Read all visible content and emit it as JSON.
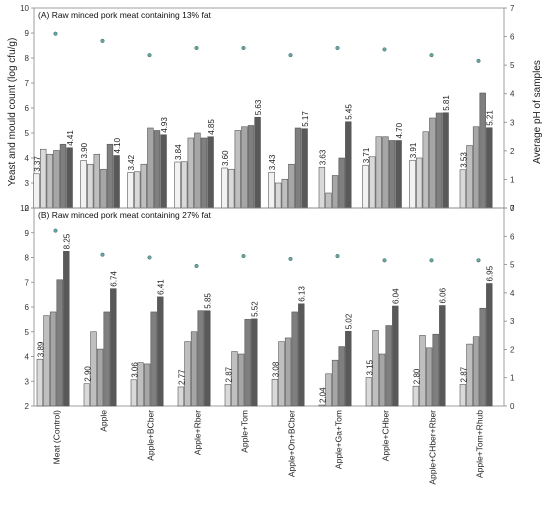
{
  "y_left_title": "Yeast and mould count (log cfu/g)",
  "y_right_title": "Average pH of samples",
  "categories": [
    "Meat (Control)",
    "Apple",
    "Apple+BCber",
    "Apple+Rber",
    "Apple+Tom",
    "Apple+On+BCber",
    "Apple+Ga+Tom",
    "Apple+CHber",
    "Apple+CHber+Rber",
    "Apple+Tom+Rhub"
  ],
  "bar_colors": [
    "#ffffff",
    "#f2f2f2",
    "#d9d9d9",
    "#bfbfbf",
    "#a6a6a6",
    "#7f7f7f",
    "#595959"
  ],
  "ph_marker_color": "#6aa5a0",
  "chart_data": [
    {
      "type": "bar",
      "title": "(A) Raw minced pork meat containing 13% fat",
      "ylabel": "Yeast and mould count (log cfu/g)",
      "y2label": "Average pH of samples",
      "ylim": [
        2,
        10
      ],
      "y_ticks": [
        "2",
        "3",
        "4",
        "5",
        "6",
        "7",
        "8",
        "9",
        "10"
      ],
      "y2lim": [
        0,
        7
      ],
      "y2_ticks": [
        "0",
        "1",
        "2",
        "3",
        "4",
        "5",
        "6",
        "7"
      ],
      "categories": [
        "Meat (Control)",
        "Apple",
        "Apple+BCber",
        "Apple+Rber",
        "Apple+Tom",
        "Apple+On+BCber",
        "Apple+Ga+Tom",
        "Apple+CHber",
        "Apple+CHber+Rber",
        "Apple+Tom+Rhub"
      ],
      "bar_values": [
        [
          3.37,
          4.35,
          4.15,
          4.3,
          4.55,
          4.41
        ],
        [
          3.9,
          3.75,
          4.15,
          3.55,
          4.55,
          4.1
        ],
        [
          3.42,
          3.45,
          3.75,
          5.2,
          5.1,
          4.93
        ],
        [
          3.84,
          3.85,
          4.8,
          5.0,
          4.8,
          4.85
        ],
        [
          3.6,
          3.55,
          5.1,
          5.25,
          5.3,
          5.63
        ],
        [
          3.43,
          3.0,
          3.15,
          3.75,
          5.2,
          5.17
        ],
        [
          3.63,
          2.6,
          3.3,
          4.0,
          5.45
        ],
        [
          3.71,
          4.05,
          4.85,
          4.85,
          4.7,
          4.7
        ],
        [
          3.91,
          4.0,
          5.05,
          5.6,
          5.8,
          5.81
        ],
        [
          3.53,
          4.5,
          5.25,
          6.6,
          5.21
        ]
      ],
      "data_labels": [
        "3.37",
        "4.41",
        "3.90",
        "4.10",
        "3.42",
        "4.93",
        "3.84",
        "4.85",
        "3.60",
        "5.63",
        "3.43",
        "5.17",
        "3.63",
        "5.45",
        "3.71",
        "4.70",
        "3.91",
        "5.81",
        "3.53",
        "5.21"
      ],
      "first_labels": [
        "3.37",
        "3.90",
        "3.42",
        "3.84",
        "3.60",
        "3.43",
        "3.63",
        "3.71",
        "3.91",
        "3.53"
      ],
      "last_labels": [
        "4.41",
        "4.10",
        "4.93",
        "4.85",
        "5.63",
        "5.17",
        "5.45",
        "4.70",
        "5.81",
        "5.21"
      ],
      "ph": [
        6.1,
        5.85,
        5.35,
        5.6,
        5.6,
        5.35,
        5.6,
        5.55,
        5.35,
        5.15
      ]
    },
    {
      "type": "bar",
      "title": "(B) Raw minced pork meat containing 27% fat",
      "ylabel": "Yeast and mould count (log cfu/g)",
      "y2label": "Average pH of samples",
      "ylim": [
        2,
        10
      ],
      "y_ticks": [
        "2",
        "3",
        "4",
        "5",
        "6",
        "7",
        "8",
        "9",
        "10"
      ],
      "y2lim": [
        0,
        7
      ],
      "y2_ticks": [
        "0",
        "1",
        "2",
        "3",
        "4",
        "5",
        "6",
        "7"
      ],
      "categories": [
        "Meat (Control)",
        "Apple",
        "Apple+BCber",
        "Apple+Rber",
        "Apple+Tom",
        "Apple+On+BCber",
        "Apple+Ga+Tom",
        "Apple+CHber",
        "Apple+CHber+Rber",
        "Apple+Tom+Rhub"
      ],
      "bar_values": [
        [
          3.89,
          5.65,
          5.8,
          7.1,
          8.25
        ],
        [
          2.9,
          5.0,
          4.3,
          5.8,
          6.74
        ],
        [
          3.06,
          3.75,
          3.7,
          5.8,
          6.41
        ],
        [
          2.77,
          4.6,
          5.0,
          5.85,
          5.85
        ],
        [
          2.87,
          4.2,
          4.1,
          5.5,
          5.52
        ],
        [
          3.08,
          4.6,
          4.75,
          5.8,
          6.13
        ],
        [
          2.04,
          3.3,
          3.85,
          4.4,
          5.02
        ],
        [
          3.15,
          5.05,
          4.1,
          5.25,
          6.04
        ],
        [
          2.8,
          4.85,
          4.35,
          4.9,
          6.06
        ],
        [
          2.87,
          4.5,
          4.8,
          5.95,
          6.95
        ]
      ],
      "data_labels": [
        "3.89",
        "8.25",
        "2.90",
        "6.74",
        "3.06",
        "6.41",
        "2.77",
        "5.85",
        "2.87",
        "5.52",
        "3.08",
        "6.13",
        "2.04",
        "5.02",
        "3.15",
        "6.04",
        "2.80",
        "6.06",
        "2.87",
        "6.95"
      ],
      "first_labels": [
        "3.89",
        "2.90",
        "3.06",
        "2.77",
        "2.87",
        "3.08",
        "2.04",
        "3.15",
        "2.80",
        "2.87"
      ],
      "last_labels": [
        "8.25",
        "6.74",
        "6.41",
        "5.85",
        "5.52",
        "6.13",
        "5.02",
        "6.04",
        "6.06",
        "6.95"
      ],
      "ph": [
        6.2,
        5.35,
        5.25,
        4.95,
        5.3,
        5.2,
        5.3,
        5.15,
        5.15,
        5.15
      ]
    }
  ]
}
